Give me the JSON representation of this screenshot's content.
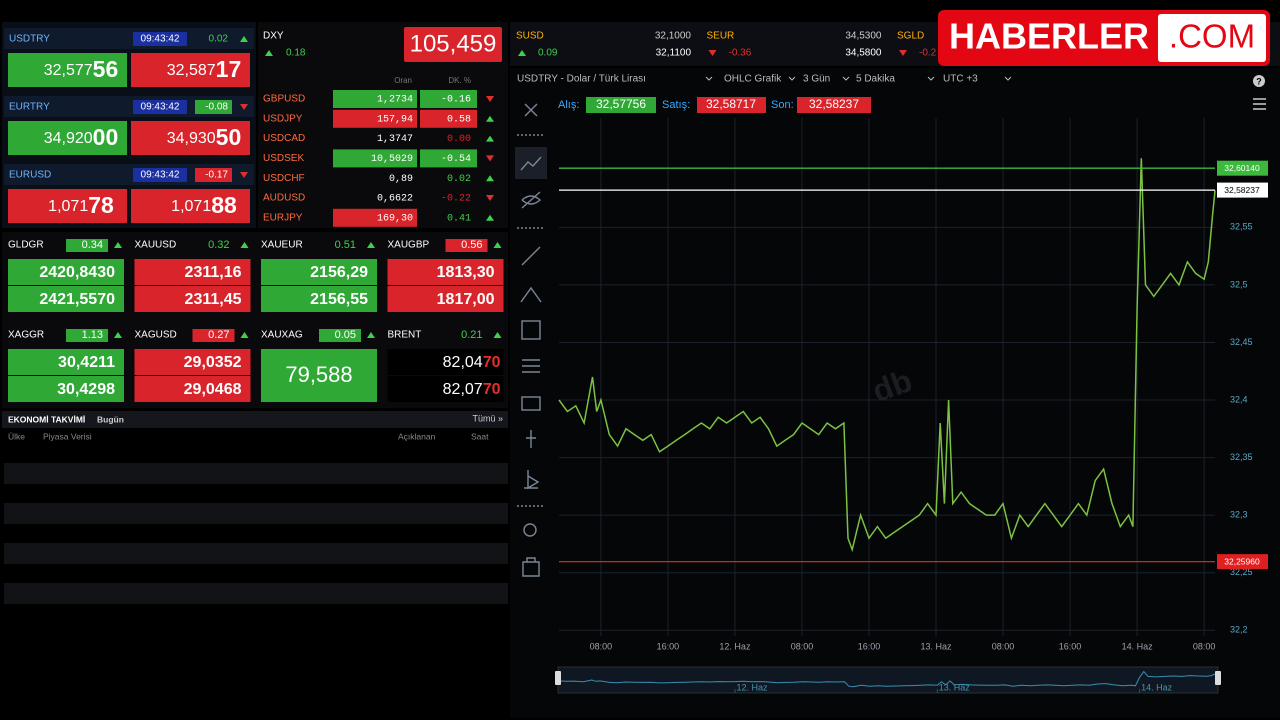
{
  "logo": {
    "name": "HABERLER",
    "suffix": ".COM"
  },
  "main_quotes": [
    {
      "symbol": "USDTRY",
      "time": "09:43:42",
      "change": "0.02",
      "change_style": "text",
      "change_color": "#3fd14a",
      "trend": "up",
      "bid": "32,577",
      "bid_pips": "56",
      "bid_color": "#2fa836",
      "ask": "32,587",
      "ask_pips": "17",
      "ask_color": "#d9242b"
    },
    {
      "symbol": "EURTRY",
      "time": "09:43:42",
      "change": "-0.08",
      "change_style": "box",
      "change_color": "#2fa836",
      "trend": "down",
      "bid": "34,920",
      "bid_pips": "00",
      "bid_color": "#2fa836",
      "ask": "34,930",
      "ask_pips": "50",
      "ask_color": "#d9242b"
    },
    {
      "symbol": "EURUSD",
      "time": "09:43:42",
      "change": "-0.17",
      "change_style": "box",
      "change_color": "#d9242b",
      "trend": "down",
      "bid": "1,071",
      "bid_pips": "78",
      "bid_color": "#d9242b",
      "ask": "1,071",
      "ask_pips": "88",
      "ask_color": "#d9242b"
    }
  ],
  "dxy": {
    "symbol": "DXY",
    "change": "0.18",
    "trend": "up",
    "value": "105,459"
  },
  "cross_rates": {
    "headers": [
      "Oran",
      "DK. %"
    ],
    "rows": [
      {
        "symbol": "GBPUSD",
        "rate": "1,2734",
        "rate_bg": "#2fa836",
        "change": "-0.16",
        "change_bg": "#2fa836",
        "change_color": "#ffffff",
        "trend": "down"
      },
      {
        "symbol": "USDJPY",
        "rate": "157,94",
        "rate_bg": "#d9242b",
        "change": "0.58",
        "change_bg": "#d9242b",
        "change_color": "#ffffff",
        "trend": "up"
      },
      {
        "symbol": "USDCAD",
        "rate": "1,3747",
        "change": "0.00",
        "change_color": "#d9242b",
        "trend": "up"
      },
      {
        "symbol": "USDSEK",
        "rate": "10,5029",
        "rate_bg": "#2fa836",
        "change": "-0.54",
        "change_bg": "#2fa836",
        "change_color": "#ffffff",
        "trend": "down"
      },
      {
        "symbol": "USDCHF",
        "rate": "0,89",
        "change": "0.02",
        "change_color": "#3fd14a",
        "trend": "up"
      },
      {
        "symbol": "AUDUSD",
        "rate": "0,6622",
        "change": "-0.22",
        "change_color": "#d9242b",
        "trend": "down"
      },
      {
        "symbol": "EURJPY",
        "rate": "169,30",
        "rate_bg": "#d9242b",
        "change": "0.41",
        "change_color": "#3fd14a",
        "trend": "up"
      }
    ]
  },
  "commodities": [
    [
      {
        "symbol": "GLDGR",
        "change": "0.34",
        "change_style": "box",
        "change_color": "#2fa836",
        "trend": "up",
        "bid": "2420,8430",
        "ask": "2421,5570",
        "color": "#2fa836"
      },
      {
        "symbol": "XAUUSD",
        "change": "0.32",
        "change_style": "text",
        "change_color": "#3fd14a",
        "trend": "up",
        "bid": "2311,16",
        "ask": "2311,45",
        "color": "#d9242b"
      },
      {
        "symbol": "XAUEUR",
        "change": "0.51",
        "change_style": "text",
        "change_color": "#3fd14a",
        "trend": "up",
        "bid": "2156,29",
        "ask": "2156,55",
        "color": "#2fa836"
      },
      {
        "symbol": "XAUGBP",
        "change": "0.56",
        "change_style": "box",
        "change_color": "#d9242b",
        "trend": "up",
        "bid": "1813,30",
        "ask": "1817,00",
        "color": "#d9242b"
      }
    ],
    [
      {
        "symbol": "XAGGR",
        "change": "1.13",
        "change_style": "box",
        "change_color": "#2fa836",
        "trend": "up",
        "bid": "30,4211",
        "ask": "30,4298",
        "color": "#2fa836"
      },
      {
        "symbol": "XAGUSD",
        "change": "0.27",
        "change_style": "box",
        "change_color": "#d9242b",
        "trend": "up",
        "bid": "29,0352",
        "ask": "29,0468",
        "color": "#d9242b"
      },
      {
        "symbol": "XAUXAG",
        "change": "0.05",
        "change_style": "box",
        "change_color": "#2fa836",
        "trend": "up",
        "value": "79,588",
        "color": "#2fa836"
      },
      {
        "symbol": "BRENT",
        "change": "0.21",
        "change_style": "text",
        "change_color": "#3fd14a",
        "trend": "up",
        "bid": "82,04",
        "bid_pips": "70",
        "ask": "82,07",
        "ask_pips": "70",
        "color": "#000000",
        "pips_color": "#e0302b"
      }
    ]
  ],
  "calendar": {
    "title": "EKONOMİ TAKVİMİ",
    "filter": "Bugün",
    "all": "Tümü »",
    "columns": [
      "Ülke",
      "Piyasa Verisi",
      "Açıklanan",
      "Saat"
    ]
  },
  "tickers": [
    {
      "symbol": "SUSD",
      "change": "0.09",
      "trend": "up",
      "bid": "32,1000",
      "ask": "32,1100"
    },
    {
      "symbol": "SEUR",
      "change": "-0.36",
      "trend": "down",
      "bid": "34,5300",
      "ask": "34,5800"
    },
    {
      "symbol": "SGLD",
      "change": "-0.2",
      "trend": "down"
    }
  ],
  "toolbar": {
    "instrument": "USDTRY - Dolar / Türk Lirası",
    "chart_type": "OHLC Grafik",
    "range": "3 Gün",
    "interval": "5 Dakika",
    "timezone": "UTC +3",
    "help": "?"
  },
  "price_bar": {
    "bid_label": "Alış:",
    "bid": "32,57756",
    "ask_label": "Satış:",
    "ask": "32,58717",
    "last_label": "Son:",
    "last": "32,58237"
  },
  "chart_data": {
    "type": "line",
    "watermark": "db",
    "color": "#7cc242",
    "grid": true,
    "x": [
      3,
      4,
      5,
      6,
      7,
      7.5,
      8,
      9,
      10,
      11,
      12,
      13,
      14,
      15,
      16,
      17,
      18,
      19,
      20,
      21,
      22,
      23,
      24,
      25,
      26,
      27,
      28,
      29,
      30,
      31,
      32,
      33,
      34,
      35,
      36,
      37,
      37.5,
      38,
      39,
      40,
      41,
      42,
      43,
      44,
      45,
      46,
      47,
      48,
      48.5,
      49,
      49.5,
      50,
      51,
      52,
      53,
      54,
      55,
      56,
      57,
      58,
      59,
      60,
      61,
      62,
      63,
      64,
      65,
      66,
      67,
      68,
      69,
      70,
      71,
      71.5,
      72,
      72.5,
      73,
      74,
      75,
      76,
      77,
      78,
      79,
      80,
      80.5,
      81,
      81.3
    ],
    "values": [
      32.4,
      32.39,
      32.395,
      32.38,
      32.42,
      32.39,
      32.4,
      32.37,
      32.36,
      32.375,
      32.37,
      32.365,
      32.37,
      32.355,
      32.36,
      32.365,
      32.37,
      32.375,
      32.38,
      32.375,
      32.385,
      32.38,
      32.385,
      32.39,
      32.38,
      32.385,
      32.375,
      32.36,
      32.365,
      32.37,
      32.38,
      32.375,
      32.37,
      32.38,
      32.375,
      32.38,
      32.28,
      32.27,
      32.3,
      32.28,
      32.29,
      32.28,
      32.285,
      32.29,
      32.295,
      32.3,
      32.31,
      32.3,
      32.38,
      32.31,
      32.4,
      32.31,
      32.32,
      32.31,
      32.305,
      32.3,
      32.3,
      32.31,
      32.28,
      32.3,
      32.29,
      32.3,
      32.31,
      32.3,
      32.29,
      32.3,
      32.31,
      32.3,
      32.33,
      32.34,
      32.31,
      32.29,
      32.3,
      32.29,
      32.48,
      32.61,
      32.5,
      32.49,
      32.5,
      32.51,
      32.5,
      32.52,
      32.51,
      32.505,
      32.52,
      32.56,
      32.582
    ],
    "xlim": [
      3,
      81.3
    ],
    "ylim": [
      32.195,
      32.645
    ],
    "xticks": [
      {
        "value": 8,
        "label": "08:00"
      },
      {
        "value": 16,
        "label": "16:00"
      },
      {
        "value": 24,
        "label": "12. Haz"
      },
      {
        "value": 32,
        "label": "08:00"
      },
      {
        "value": 40,
        "label": "16:00"
      },
      {
        "value": 48,
        "label": "13. Haz"
      },
      {
        "value": 56,
        "label": "08:00"
      },
      {
        "value": 64,
        "label": "16:00"
      },
      {
        "value": 72,
        "label": "14. Haz"
      },
      {
        "value": 80,
        "label": "08:00"
      }
    ],
    "yticks": [
      {
        "value": 32.2,
        "label": "32,2"
      },
      {
        "value": 32.25,
        "label": "32,25"
      },
      {
        "value": 32.3,
        "label": "32,3"
      },
      {
        "value": 32.35,
        "label": "32,35"
      },
      {
        "value": 32.4,
        "label": "32,4"
      },
      {
        "value": 32.45,
        "label": "32,45"
      },
      {
        "value": 32.5,
        "label": "32,5"
      },
      {
        "value": 32.55,
        "label": "32,55"
      }
    ],
    "reference_lines": [
      {
        "value": 32.6014,
        "label": "32,60140",
        "color": "#3cb83c"
      },
      {
        "value": 32.58237,
        "label": "32,58237",
        "color": "#ffffff"
      },
      {
        "value": 32.2596,
        "label": "32,25960",
        "color": "#e02020"
      }
    ],
    "navigator_ticks": [
      {
        "value": 24,
        "label": "12. Haz"
      },
      {
        "value": 48,
        "label": "13. Haz"
      },
      {
        "value": 72,
        "label": "14. Haz"
      }
    ]
  }
}
